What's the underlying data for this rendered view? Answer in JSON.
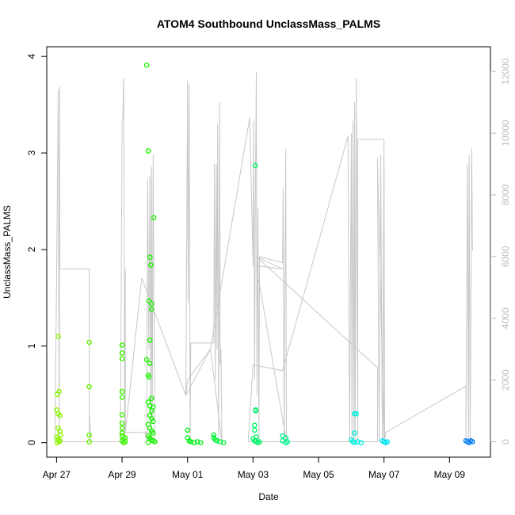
{
  "chart_data": {
    "type": "scatter",
    "title": "ATOM4 Southbound UnclassMass_PALMS",
    "xlabel": "Date",
    "ylabel": "UnclassMass_PALMS",
    "x_ticks": [
      "Apr 27",
      "Apr 29",
      "May 01",
      "May 03",
      "May 05",
      "May 07",
      "May 09"
    ],
    "x_tick_days": [
      27,
      29,
      31,
      33,
      35,
      37,
      39
    ],
    "xlim_days": [
      26.7,
      40.25
    ],
    "ylim": [
      -0.15,
      4.1
    ],
    "y_ticks": [
      0,
      1,
      2,
      3,
      4
    ],
    "y2lim": [
      -500,
      12800
    ],
    "y2_ticks": [
      0,
      2000,
      4000,
      6000,
      8000,
      10000,
      12000
    ],
    "y2_color": "#bdbdbd",
    "grid": false,
    "series": [
      {
        "kind": "points",
        "values_xy": [
          [
            27.05,
            1.1
          ],
          [
            27.0,
            0.34
          ],
          [
            27.05,
            0.3
          ],
          [
            27.02,
            0.5
          ],
          [
            27.08,
            0.53
          ],
          [
            27.1,
            0.28
          ],
          [
            27.05,
            0.15
          ],
          [
            27.1,
            0.12
          ],
          [
            27.0,
            0.06
          ],
          [
            27.05,
            0.04
          ],
          [
            27.1,
            0.02
          ],
          [
            27.02,
            0.0
          ],
          [
            27.08,
            0.01
          ],
          [
            27.12,
            0.08
          ],
          [
            28.0,
            1.04
          ],
          [
            28.0,
            0.58
          ],
          [
            28.0,
            0.08
          ],
          [
            28.0,
            0.01
          ],
          [
            29.0,
            1.01
          ],
          [
            29.0,
            0.93
          ],
          [
            29.0,
            0.87
          ],
          [
            29.0,
            0.53
          ],
          [
            29.0,
            0.47
          ],
          [
            29.0,
            0.29
          ],
          [
            29.0,
            0.2
          ],
          [
            29.0,
            0.15
          ],
          [
            29.0,
            0.1
          ],
          [
            29.0,
            0.07
          ],
          [
            29.05,
            0.04
          ],
          [
            29.0,
            0.02
          ],
          [
            29.05,
            0.0
          ],
          [
            29.1,
            0.05
          ],
          [
            29.1,
            0.01
          ],
          [
            29.75,
            3.91
          ],
          [
            29.8,
            3.02
          ],
          [
            29.85,
            1.92
          ],
          [
            29.88,
            1.84
          ],
          [
            29.82,
            1.47
          ],
          [
            29.9,
            1.44
          ],
          [
            29.9,
            1.38
          ],
          [
            29.97,
            2.33
          ],
          [
            29.85,
            1.06
          ],
          [
            29.75,
            0.86
          ],
          [
            29.85,
            0.82
          ],
          [
            29.8,
            0.7
          ],
          [
            29.82,
            0.68
          ],
          [
            29.9,
            0.46
          ],
          [
            29.8,
            0.42
          ],
          [
            29.85,
            0.38
          ],
          [
            29.95,
            0.37
          ],
          [
            29.9,
            0.33
          ],
          [
            29.85,
            0.28
          ],
          [
            29.9,
            0.25
          ],
          [
            29.95,
            0.22
          ],
          [
            29.8,
            0.19
          ],
          [
            29.85,
            0.15
          ],
          [
            29.9,
            0.12
          ],
          [
            29.95,
            0.1
          ],
          [
            29.8,
            0.07
          ],
          [
            29.85,
            0.05
          ],
          [
            29.9,
            0.03
          ],
          [
            29.95,
            0.02
          ],
          [
            30.0,
            0.01
          ],
          [
            29.8,
            0.0
          ],
          [
            31.0,
            0.13
          ],
          [
            31.0,
            0.05
          ],
          [
            31.05,
            0.02
          ],
          [
            31.1,
            0.01
          ],
          [
            31.2,
            0.0
          ],
          [
            31.3,
            0.01
          ],
          [
            31.4,
            0.0
          ],
          [
            31.8,
            0.08
          ],
          [
            31.8,
            0.05
          ],
          [
            31.85,
            0.03
          ],
          [
            31.9,
            0.02
          ],
          [
            32.0,
            0.01
          ],
          [
            32.1,
            0.0
          ],
          [
            33.07,
            2.87
          ],
          [
            33.08,
            0.34
          ],
          [
            33.08,
            0.33
          ],
          [
            33.05,
            0.18
          ],
          [
            33.05,
            0.13
          ],
          [
            33.1,
            0.06
          ],
          [
            33.0,
            0.04
          ],
          [
            33.05,
            0.02
          ],
          [
            33.1,
            0.01
          ],
          [
            33.15,
            0.0
          ],
          [
            33.2,
            0.01
          ],
          [
            33.9,
            0.07
          ],
          [
            34.0,
            0.05
          ],
          [
            33.9,
            0.02
          ],
          [
            34.0,
            0.0
          ],
          [
            34.05,
            0.01
          ],
          [
            36.1,
            0.3
          ],
          [
            36.15,
            0.3
          ],
          [
            36.1,
            0.1
          ],
          [
            36.0,
            0.03
          ],
          [
            36.05,
            0.01
          ],
          [
            36.1,
            0.0
          ],
          [
            36.2,
            0.01
          ],
          [
            36.3,
            0.0
          ],
          [
            36.95,
            0.02
          ],
          [
            37.0,
            0.01
          ],
          [
            37.05,
            0.0
          ],
          [
            37.1,
            0.01
          ],
          [
            39.5,
            0.02
          ],
          [
            39.55,
            0.01
          ],
          [
            39.6,
            0.0
          ],
          [
            39.65,
            0.02
          ],
          [
            39.7,
            0.01
          ]
        ]
      },
      {
        "kind": "line_right_axis",
        "color": "#c8c8c8",
        "values_xy": [
          [
            26.95,
            0
          ],
          [
            27.0,
            5200
          ],
          [
            27.05,
            11400
          ],
          [
            27.08,
            0
          ],
          [
            27.1,
            11500
          ],
          [
            27.1,
            5600
          ],
          [
            28.0,
            5600
          ],
          [
            28.0,
            0
          ],
          [
            27.1,
            0
          ],
          [
            28.0,
            0
          ],
          [
            28.0,
            1000
          ],
          [
            28.05,
            0
          ],
          [
            28.95,
            0
          ],
          [
            29.0,
            10400
          ],
          [
            29.02,
            10500
          ],
          [
            29.05,
            11800
          ],
          [
            29.08,
            0
          ],
          [
            29.1,
            5600
          ],
          [
            29.1,
            300
          ],
          [
            29.7,
            300
          ],
          [
            29.75,
            0
          ],
          [
            29.78,
            8500
          ],
          [
            29.82,
            3000
          ],
          [
            29.85,
            8600
          ],
          [
            29.88,
            0
          ],
          [
            29.9,
            8900
          ],
          [
            29.92,
            600
          ],
          [
            29.95,
            9300
          ],
          [
            30.0,
            0
          ],
          [
            30.0,
            300
          ],
          [
            29.1,
            300
          ],
          [
            29.6,
            5300
          ],
          [
            30.95,
            1500
          ],
          [
            31.0,
            11700
          ],
          [
            31.02,
            4500
          ],
          [
            31.05,
            11600
          ],
          [
            31.08,
            0
          ],
          [
            31.1,
            3200
          ],
          [
            31.8,
            3200
          ],
          [
            31.82,
            9000
          ],
          [
            31.85,
            2000
          ],
          [
            31.88,
            9000
          ],
          [
            31.9,
            3000
          ],
          [
            31.92,
            10300
          ],
          [
            31.95,
            0
          ],
          [
            31.98,
            11000
          ],
          [
            32.0,
            2500
          ],
          [
            32.02,
            3000
          ],
          [
            32.05,
            0
          ],
          [
            31.7,
            3000
          ],
          [
            30.95,
            1500
          ],
          [
            31.0,
            2000
          ],
          [
            31.7,
            3000
          ],
          [
            32.9,
            10500
          ],
          [
            33.0,
            5700
          ],
          [
            33.02,
            10400
          ],
          [
            33.05,
            2000
          ],
          [
            33.07,
            7800
          ],
          [
            33.1,
            12000
          ],
          [
            33.12,
            1500
          ],
          [
            33.15,
            7600
          ],
          [
            33.18,
            0
          ],
          [
            33.2,
            6000
          ],
          [
            33.9,
            5800
          ],
          [
            33.92,
            8200
          ],
          [
            33.95,
            0
          ],
          [
            34.0,
            9500
          ],
          [
            34.02,
            0
          ],
          [
            33.1,
            5700
          ],
          [
            33.9,
            5600
          ],
          [
            33.1,
            6000
          ],
          [
            36.8,
            2400
          ],
          [
            36.8,
            0
          ],
          [
            32.85,
            0
          ],
          [
            33.0,
            2500
          ],
          [
            33.9,
            2300
          ],
          [
            35.9,
            9900
          ],
          [
            35.95,
            0
          ],
          [
            36.0,
            10000
          ],
          [
            36.02,
            0
          ],
          [
            36.05,
            10400
          ],
          [
            36.08,
            0
          ],
          [
            36.1,
            11000
          ],
          [
            36.12,
            0
          ],
          [
            36.15,
            11800
          ],
          [
            36.2,
            0
          ],
          [
            36.2,
            9800
          ],
          [
            37.0,
            9800
          ],
          [
            37.0,
            0
          ],
          [
            36.8,
            9200
          ],
          [
            36.85,
            0
          ],
          [
            36.9,
            9300
          ],
          [
            36.95,
            0
          ],
          [
            37.0,
            9600
          ],
          [
            37.02,
            0
          ],
          [
            37.05,
            300
          ],
          [
            39.5,
            1800
          ],
          [
            39.5,
            0
          ],
          [
            39.55,
            9000
          ],
          [
            39.58,
            0
          ],
          [
            39.6,
            9300
          ],
          [
            39.63,
            0
          ],
          [
            39.68,
            9500
          ],
          [
            39.7,
            6200
          ]
        ]
      }
    ]
  }
}
